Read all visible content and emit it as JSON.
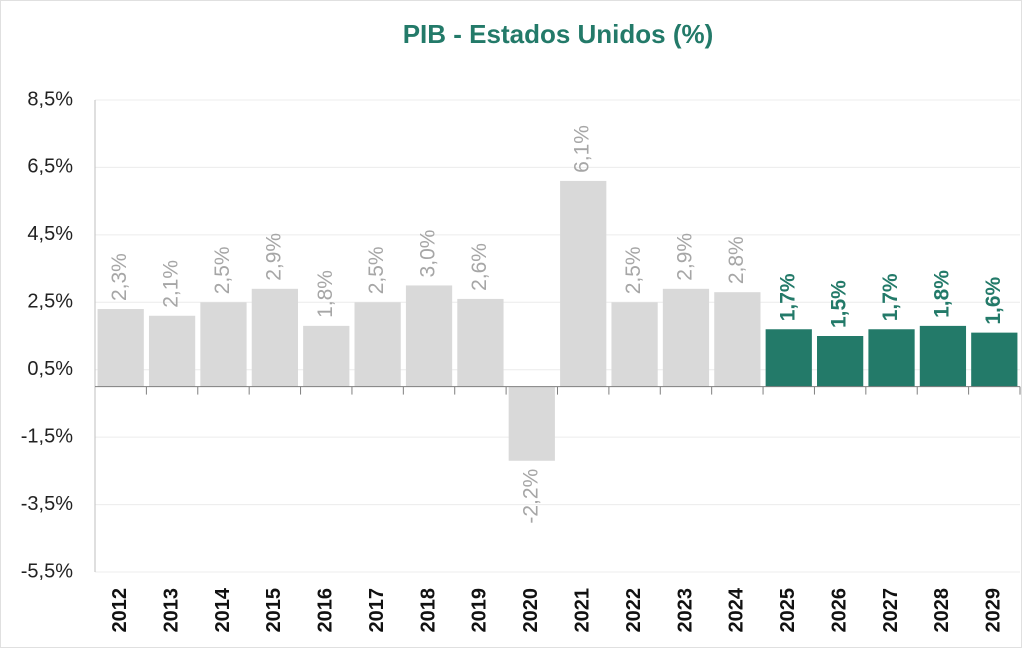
{
  "chart_data": {
    "type": "bar",
    "title": "PIB - Estados Unidos (%)",
    "categories": [
      "2012",
      "2013",
      "2014",
      "2015",
      "2016",
      "2017",
      "2018",
      "2019",
      "2020",
      "2021",
      "2022",
      "2023",
      "2024",
      "2025",
      "2026",
      "2027",
      "2028",
      "2029"
    ],
    "values": [
      2.3,
      2.1,
      2.5,
      2.9,
      1.8,
      2.5,
      3.0,
      2.6,
      -2.2,
      6.1,
      2.5,
      2.9,
      2.8,
      1.7,
      1.5,
      1.7,
      1.8,
      1.6
    ],
    "value_labels": [
      "2,3%",
      "2,1%",
      "2,5%",
      "2,9%",
      "1,8%",
      "2,5%",
      "3,0%",
      "2,6%",
      "-2,2%",
      "6,1%",
      "2,5%",
      "2,9%",
      "2,8%",
      "1,7%",
      "1,5%",
      "1,7%",
      "1,8%",
      "1,6%"
    ],
    "colors": [
      "#d9d9d9",
      "#d9d9d9",
      "#d9d9d9",
      "#d9d9d9",
      "#d9d9d9",
      "#d9d9d9",
      "#d9d9d9",
      "#d9d9d9",
      "#d9d9d9",
      "#d9d9d9",
      "#d9d9d9",
      "#d9d9d9",
      "#d9d9d9",
      "#237a69",
      "#237a69",
      "#237a69",
      "#237a69",
      "#237a69"
    ],
    "value_label_colors": [
      "#a6a6a6",
      "#a6a6a6",
      "#a6a6a6",
      "#a6a6a6",
      "#a6a6a6",
      "#a6a6a6",
      "#a6a6a6",
      "#a6a6a6",
      "#a6a6a6",
      "#a6a6a6",
      "#a6a6a6",
      "#a6a6a6",
      "#a6a6a6",
      "#237a69",
      "#237a69",
      "#237a69",
      "#237a69",
      "#237a69"
    ],
    "ylim": [
      -5.5,
      8.5
    ],
    "yticks": [
      {
        "value": -5.5,
        "label": "-5,5%"
      },
      {
        "value": -3.5,
        "label": "-3,5%"
      },
      {
        "value": -1.5,
        "label": "-1,5%"
      },
      {
        "value": 0.5,
        "label": "0,5%"
      },
      {
        "value": 2.5,
        "label": "2,5%"
      },
      {
        "value": 4.5,
        "label": "4,5%"
      },
      {
        "value": 6.5,
        "label": "6,5%"
      },
      {
        "value": 8.5,
        "label": "8,5%"
      }
    ],
    "grid": true
  }
}
